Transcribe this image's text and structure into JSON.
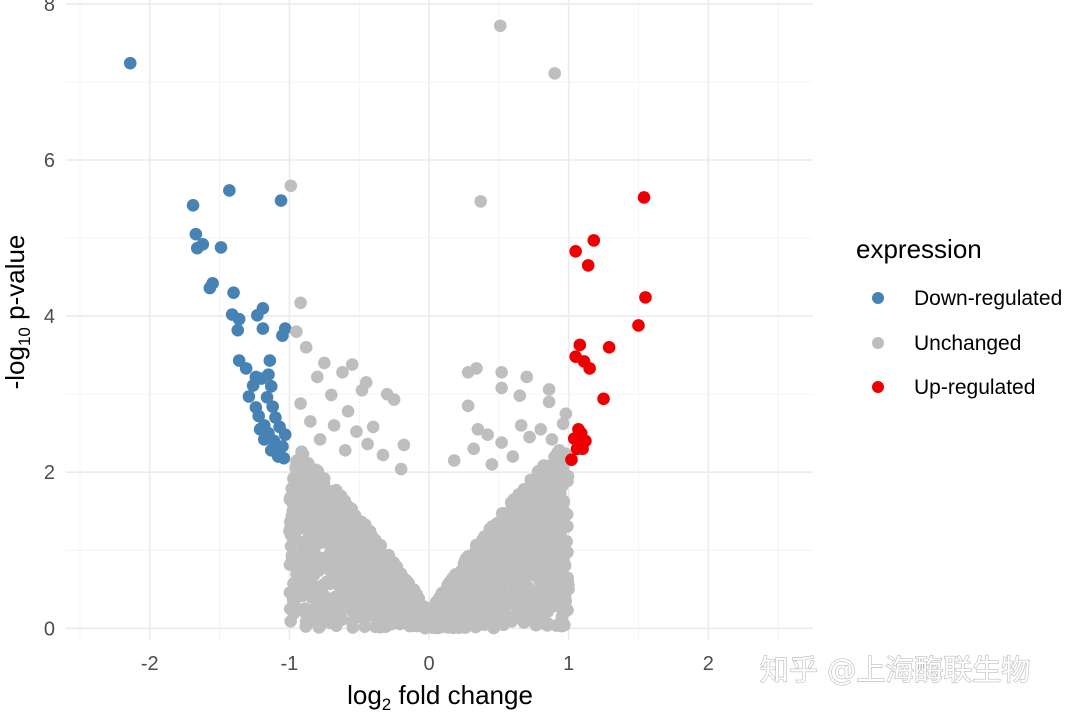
{
  "chart_data": {
    "type": "scatter",
    "title": "",
    "xlabel": {
      "prefix": "log",
      "sub": "2",
      "suffix": " fold change"
    },
    "ylabel": {
      "prefix": "-log",
      "sub": "10",
      "suffix": " p-value"
    },
    "xlim": [
      -2.6,
      2.75
    ],
    "ylim": [
      -0.15,
      8.05
    ],
    "x_ticks": [
      -2,
      -1,
      0,
      1,
      2
    ],
    "x_tick_labels": [
      "-2",
      "-1",
      "0",
      "1",
      "2"
    ],
    "y_ticks": [
      0,
      2,
      4,
      6,
      8
    ],
    "y_tick_labels": [
      "0",
      "2",
      "4",
      "6",
      "8"
    ],
    "grid": true,
    "legend": {
      "title": "expression",
      "position": "right",
      "entries": [
        "Down-regulated",
        "Unchanged",
        "Up-regulated"
      ]
    },
    "series": [
      {
        "name": "Down-regulated",
        "color": "#4682b4",
        "points": [
          [
            -2.14,
            7.24
          ],
          [
            -1.69,
            5.42
          ],
          [
            -1.43,
            5.61
          ],
          [
            -1.06,
            5.48
          ],
          [
            -1.67,
            5.05
          ],
          [
            -1.62,
            4.92
          ],
          [
            -1.66,
            4.87
          ],
          [
            -1.49,
            4.88
          ],
          [
            -1.55,
            4.42
          ],
          [
            -1.57,
            4.36
          ],
          [
            -1.4,
            4.3
          ],
          [
            -1.41,
            4.02
          ],
          [
            -1.36,
            3.96
          ],
          [
            -1.23,
            4.01
          ],
          [
            -1.19,
            4.1
          ],
          [
            -1.37,
            3.82
          ],
          [
            -1.19,
            3.84
          ],
          [
            -1.03,
            3.84
          ],
          [
            -1.05,
            3.75
          ],
          [
            -1.36,
            3.43
          ],
          [
            -1.14,
            3.43
          ],
          [
            -1.31,
            3.33
          ],
          [
            -1.15,
            3.25
          ],
          [
            -1.24,
            3.22
          ],
          [
            -1.2,
            3.2
          ],
          [
            -1.26,
            3.11
          ],
          [
            -1.13,
            3.1
          ],
          [
            -1.29,
            2.97
          ],
          [
            -1.16,
            2.96
          ],
          [
            -1.24,
            2.83
          ],
          [
            -1.12,
            2.84
          ],
          [
            -1.22,
            2.72
          ],
          [
            -1.1,
            2.7
          ],
          [
            -1.18,
            2.6
          ],
          [
            -1.07,
            2.58
          ],
          [
            -1.15,
            2.5
          ],
          [
            -1.03,
            2.48
          ],
          [
            -1.11,
            2.4
          ],
          [
            -1.05,
            2.33
          ],
          [
            -1.13,
            2.28
          ],
          [
            -1.08,
            2.2
          ],
          [
            -1.04,
            2.18
          ],
          [
            -1.18,
            2.42
          ],
          [
            -1.21,
            2.55
          ]
        ]
      },
      {
        "name": "Unchanged",
        "color": "#bebebe",
        "points": [
          [
            0.51,
            7.72
          ],
          [
            0.9,
            7.11
          ],
          [
            -0.99,
            5.67
          ],
          [
            0.37,
            5.47
          ],
          [
            -0.92,
            4.17
          ],
          [
            -0.95,
            3.8
          ],
          [
            -0.88,
            3.6
          ],
          [
            -0.75,
            3.4
          ],
          [
            -0.55,
            3.38
          ],
          [
            -0.62,
            3.28
          ],
          [
            -0.45,
            3.15
          ],
          [
            -0.8,
            3.22
          ],
          [
            -0.48,
            3.05
          ],
          [
            -0.3,
            3.0
          ],
          [
            -0.25,
            2.93
          ],
          [
            -0.7,
            2.99
          ],
          [
            -0.58,
            2.78
          ],
          [
            -0.92,
            2.88
          ],
          [
            -0.85,
            2.65
          ],
          [
            -0.68,
            2.6
          ],
          [
            -0.52,
            2.52
          ],
          [
            -0.4,
            2.58
          ],
          [
            -0.44,
            2.36
          ],
          [
            -0.18,
            2.35
          ],
          [
            -0.33,
            2.22
          ],
          [
            -0.2,
            2.04
          ],
          [
            -0.6,
            2.28
          ],
          [
            -0.78,
            2.42
          ],
          [
            0.28,
            3.28
          ],
          [
            0.34,
            3.33
          ],
          [
            0.52,
            3.28
          ],
          [
            0.52,
            3.08
          ],
          [
            0.7,
            3.22
          ],
          [
            0.86,
            3.06
          ],
          [
            0.28,
            2.85
          ],
          [
            0.65,
            2.98
          ],
          [
            0.86,
            2.9
          ],
          [
            0.98,
            2.75
          ],
          [
            0.66,
            2.6
          ],
          [
            0.96,
            2.62
          ],
          [
            0.8,
            2.55
          ],
          [
            0.72,
            2.45
          ],
          [
            0.52,
            2.38
          ],
          [
            0.88,
            2.42
          ],
          [
            0.32,
            2.3
          ],
          [
            0.18,
            2.15
          ],
          [
            0.45,
            2.1
          ],
          [
            0.6,
            2.2
          ],
          [
            0.92,
            2.25
          ],
          [
            0.35,
            2.55
          ],
          [
            0.42,
            2.48
          ]
        ]
      },
      {
        "name": "Up-regulated",
        "color": "#ee0000",
        "points": [
          [
            1.54,
            5.52
          ],
          [
            1.18,
            4.97
          ],
          [
            1.05,
            4.83
          ],
          [
            1.14,
            4.65
          ],
          [
            1.55,
            4.24
          ],
          [
            1.5,
            3.88
          ],
          [
            1.08,
            3.63
          ],
          [
            1.29,
            3.6
          ],
          [
            1.05,
            3.48
          ],
          [
            1.11,
            3.42
          ],
          [
            1.15,
            3.33
          ],
          [
            1.25,
            2.94
          ],
          [
            1.07,
            2.55
          ],
          [
            1.12,
            2.4
          ],
          [
            1.06,
            2.3
          ],
          [
            1.1,
            2.3
          ],
          [
            1.04,
            2.43
          ],
          [
            1.02,
            2.16
          ],
          [
            1.09,
            2.5
          ]
        ]
      }
    ],
    "background_cloud": {
      "series": "Unchanged",
      "shape": "volcano",
      "description_note": "dense cloud of unchanged genes filling the V-shaped region below the p-value threshold"
    }
  },
  "watermark": "知乎 @上海酶联生物"
}
